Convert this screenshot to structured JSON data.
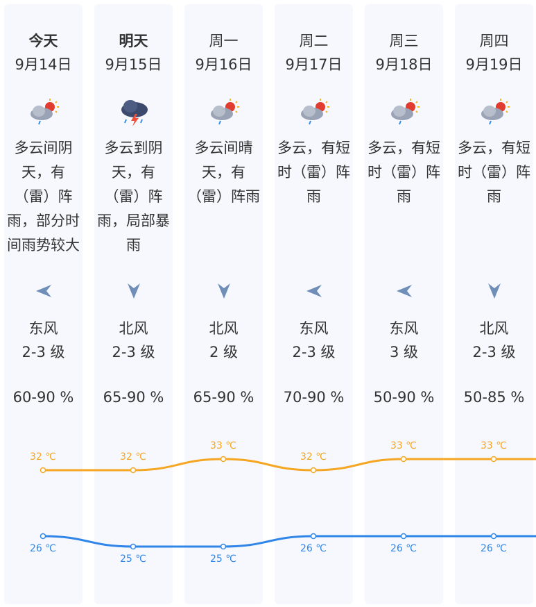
{
  "days": [
    {
      "day": "今天",
      "date": "9月14日",
      "icon": "cloudy-rain-sun-icon",
      "desc": "多云间阴天，有（雷）阵雨，部分时间雨势较大",
      "wind_dir_icon": "wind-arrow-left-icon",
      "wind_dir": "东风",
      "wind_level": "2-3 级",
      "humidity": "60-90 %",
      "high": "32 ℃",
      "low": "26 ℃"
    },
    {
      "day": "明天",
      "date": "9月15日",
      "icon": "thunderstorm-icon",
      "desc": "多云到阴天，有（雷）阵雨，局部暴雨",
      "wind_dir_icon": "wind-arrow-down-icon",
      "wind_dir": "北风",
      "wind_level": "2-3 级",
      "humidity": "65-90 %",
      "high": "32 ℃",
      "low": "25 ℃"
    },
    {
      "day": "周一",
      "date": "9月16日",
      "icon": "cloudy-rain-sun-icon",
      "desc": "多云间晴天，有（雷）阵雨",
      "wind_dir_icon": "wind-arrow-down-icon",
      "wind_dir": "北风",
      "wind_level": "2 级",
      "humidity": "65-90 %",
      "high": "33 ℃",
      "low": "25 ℃"
    },
    {
      "day": "周二",
      "date": "9月17日",
      "icon": "cloudy-rain-sun-icon",
      "desc": "多云，有短时（雷）阵雨",
      "wind_dir_icon": "wind-arrow-left-icon",
      "wind_dir": "东风",
      "wind_level": "2-3 级",
      "humidity": "70-90 %",
      "high": "32 ℃",
      "low": "26 ℃"
    },
    {
      "day": "周三",
      "date": "9月18日",
      "icon": "cloudy-rain-sun-icon",
      "desc": "多云，有短时（雷）阵雨",
      "wind_dir_icon": "wind-arrow-left-icon",
      "wind_dir": "东风",
      "wind_level": "3 级",
      "humidity": "50-90 %",
      "high": "33 ℃",
      "low": "26 ℃"
    },
    {
      "day": "周四",
      "date": "9月19日",
      "icon": "cloudy-rain-sun-icon",
      "desc": "多云，有短时（雷）阵雨",
      "wind_dir_icon": "wind-arrow-down-icon",
      "wind_dir": "北风",
      "wind_level": "2-3 级",
      "humidity": "50-85 %",
      "high": "33 ℃",
      "low": "26 ℃"
    }
  ],
  "chart_data": {
    "type": "line",
    "categories": [
      "9月14日",
      "9月15日",
      "9月16日",
      "9月17日",
      "9月18日",
      "9月19日"
    ],
    "series": [
      {
        "values": [
          32,
          32,
          33,
          32,
          33,
          33
        ],
        "color": "#f5a623"
      },
      {
        "values": [
          26,
          25,
          25,
          26,
          26,
          26
        ],
        "color": "#2f86e8"
      }
    ],
    "unit": "℃"
  },
  "colors": {
    "high_line": "#f5a623",
    "low_line": "#2f86e8",
    "card_bg": "#f6f8fd"
  }
}
